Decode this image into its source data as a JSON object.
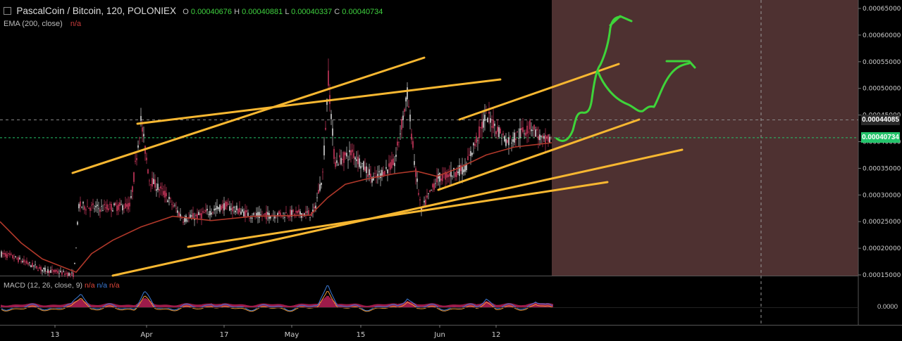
{
  "header": {
    "icon": "collapse-square-icon",
    "title": "PascalCoin / Bitcoin, 120, POLONIEX",
    "ohlc": [
      {
        "k": "O",
        "v": "0.00040676"
      },
      {
        "k": "H",
        "v": "0.00040881"
      },
      {
        "k": "L",
        "v": "0.00040337"
      },
      {
        "k": "C",
        "v": "0.00040734"
      }
    ]
  },
  "ema": {
    "label": "EMA (200, close)",
    "value": "n/a"
  },
  "macd": {
    "label": "MACD (12, 26, close, 9)",
    "values": [
      "n/a",
      "n/a",
      "n/a"
    ],
    "zero_label": "0.0000"
  },
  "price_axis": {
    "ticks": [
      "0.00065000",
      "0.00060000",
      "0.00055000",
      "0.00050000",
      "0.00045000",
      "0.00040000",
      "0.00035000",
      "0.00030000",
      "0.00025000",
      "0.00020000",
      "0.00015000"
    ],
    "tick_values": [
      0.00065,
      0.0006,
      0.00055,
      0.0005,
      0.00045,
      0.0004,
      0.00035,
      0.0003,
      0.00025,
      0.0002,
      0.00015
    ],
    "marker_dashed": {
      "label": "0.00044085",
      "value": 0.00044085
    },
    "marker_last": {
      "label": "0.00040734",
      "value": 0.00040734
    }
  },
  "time_axis": {
    "labels": [
      "13",
      "Apr",
      "17",
      "May",
      "15",
      "Jun",
      "12"
    ]
  },
  "colors": {
    "background": "#000000",
    "up_candle": "#f5f5f5",
    "down_candle": "#e8406a",
    "ema": "#b0382a",
    "trendline": "#f7b731",
    "projection": "#3ed43a",
    "future_zone": "#4e3131",
    "last_price": "#24c36b"
  }
}
